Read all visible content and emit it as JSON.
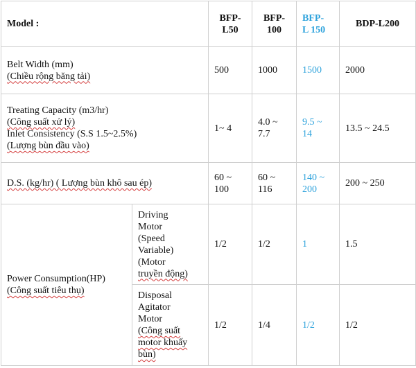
{
  "header": {
    "model_label": "Model :",
    "col1": [
      "BFP-",
      "L50"
    ],
    "col2": [
      "BFP-",
      "100"
    ],
    "col3": [
      "BFP-",
      "L 150"
    ],
    "col4": [
      "BDP-L200"
    ]
  },
  "rows": [
    {
      "label": [
        "Belt Width (mm)",
        "(Chiều rộng băng tải)"
      ],
      "values": [
        [
          "500"
        ],
        [
          "1000"
        ],
        [
          "1500"
        ],
        [
          "2000"
        ]
      ]
    },
    {
      "label": [
        "Treating Capacity (m3/hr)",
        "(Công suất xử lý)",
        "Inlet Consistency (S.S 1.5~2.5%)",
        "(Lượng bùn đầu vào)"
      ],
      "values": [
        [
          "1~ 4"
        ],
        [
          "4.0 ~",
          "7.7"
        ],
        [
          "9.5 ~",
          "14"
        ],
        [
          "13.5 ~ 24.5"
        ]
      ]
    },
    {
      "label": [
        "D.S. (kg/hr) ( Lượng bùn khô sau ép)"
      ],
      "values": [
        [
          "60 ~",
          "100"
        ],
        [
          "60 ~",
          "116"
        ],
        [
          "140 ~",
          "200"
        ],
        [
          "200 ~ 250"
        ]
      ]
    }
  ],
  "power": {
    "label": [
      "Power Consumption(HP)",
      "(Công suất tiêu thụ)"
    ],
    "sub": [
      {
        "label": [
          "Driving",
          "Motor",
          "(Speed",
          "Variable)",
          "(Motor",
          "truyền động)"
        ],
        "values": [
          "1/2",
          "1/2",
          "1",
          "1.5"
        ]
      },
      {
        "label": [
          "Disposal",
          "Agitator",
          "Motor",
          "(Công suất",
          "motor khuấy",
          "bùn)"
        ],
        "values": [
          "1/2",
          "1/4",
          "1/2",
          "1/2"
        ]
      }
    ]
  },
  "colors": {
    "highlight": "#2fa3dc",
    "border": "#cfcfcf",
    "text": "#111111"
  }
}
